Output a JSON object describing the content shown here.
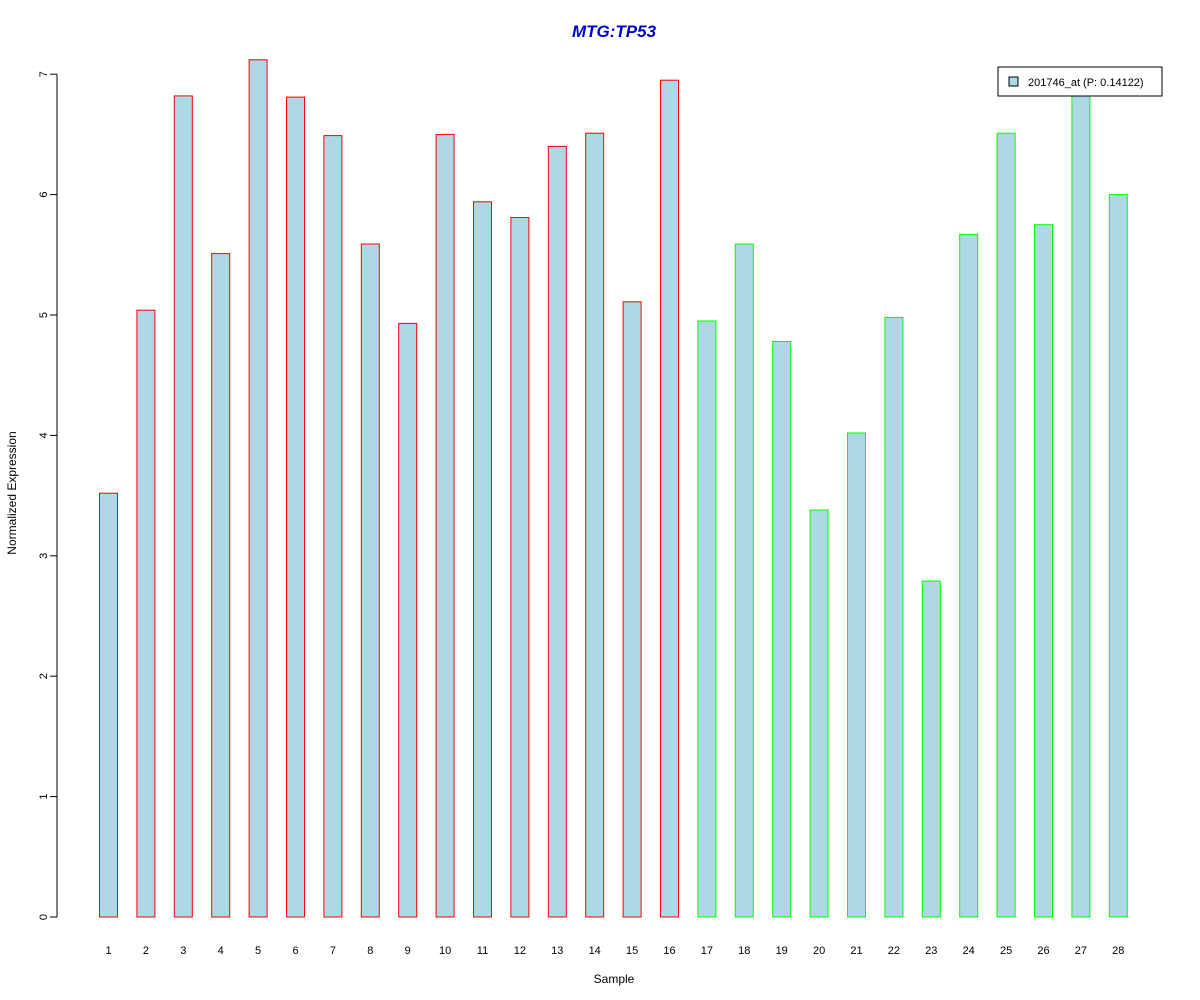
{
  "chart_data": {
    "type": "bar",
    "title": "MTG:TP53",
    "xlabel": "Sample",
    "ylabel": "Normalized Expression",
    "ylim": [
      0,
      7.15
    ],
    "yticks": [
      0,
      1,
      2,
      3,
      4,
      5,
      6,
      7
    ],
    "grid": false,
    "legend_position": "top-right",
    "categories": [
      "1",
      "2",
      "3",
      "4",
      "5",
      "6",
      "7",
      "8",
      "9",
      "10",
      "11",
      "12",
      "13",
      "14",
      "15",
      "16",
      "17",
      "18",
      "19",
      "20",
      "21",
      "22",
      "23",
      "24",
      "25",
      "26",
      "27",
      "28"
    ],
    "series": [
      {
        "name": "201746_at (P: 0.14122)",
        "values": [
          3.52,
          5.04,
          6.82,
          5.51,
          7.12,
          6.81,
          6.49,
          5.59,
          4.93,
          6.5,
          5.94,
          5.81,
          6.4,
          6.51,
          5.11,
          6.95,
          4.95,
          5.59,
          4.78,
          3.38,
          4.02,
          4.98,
          2.79,
          5.67,
          6.51,
          5.75,
          6.83,
          6.0
        ],
        "group": [
          "a",
          "a",
          "a",
          "a",
          "a",
          "a",
          "a",
          "a",
          "a",
          "a",
          "a",
          "a",
          "a",
          "a",
          "a",
          "a",
          "b",
          "b",
          "b",
          "b",
          "b",
          "b",
          "b",
          "b",
          "b",
          "b",
          "b",
          "b"
        ]
      }
    ],
    "colors": {
      "bar_fill": "#add8e6",
      "group_a_border": "#ff0000",
      "group_b_border": "#00ff00",
      "title": "#0000cc",
      "axis": "#000000"
    }
  }
}
